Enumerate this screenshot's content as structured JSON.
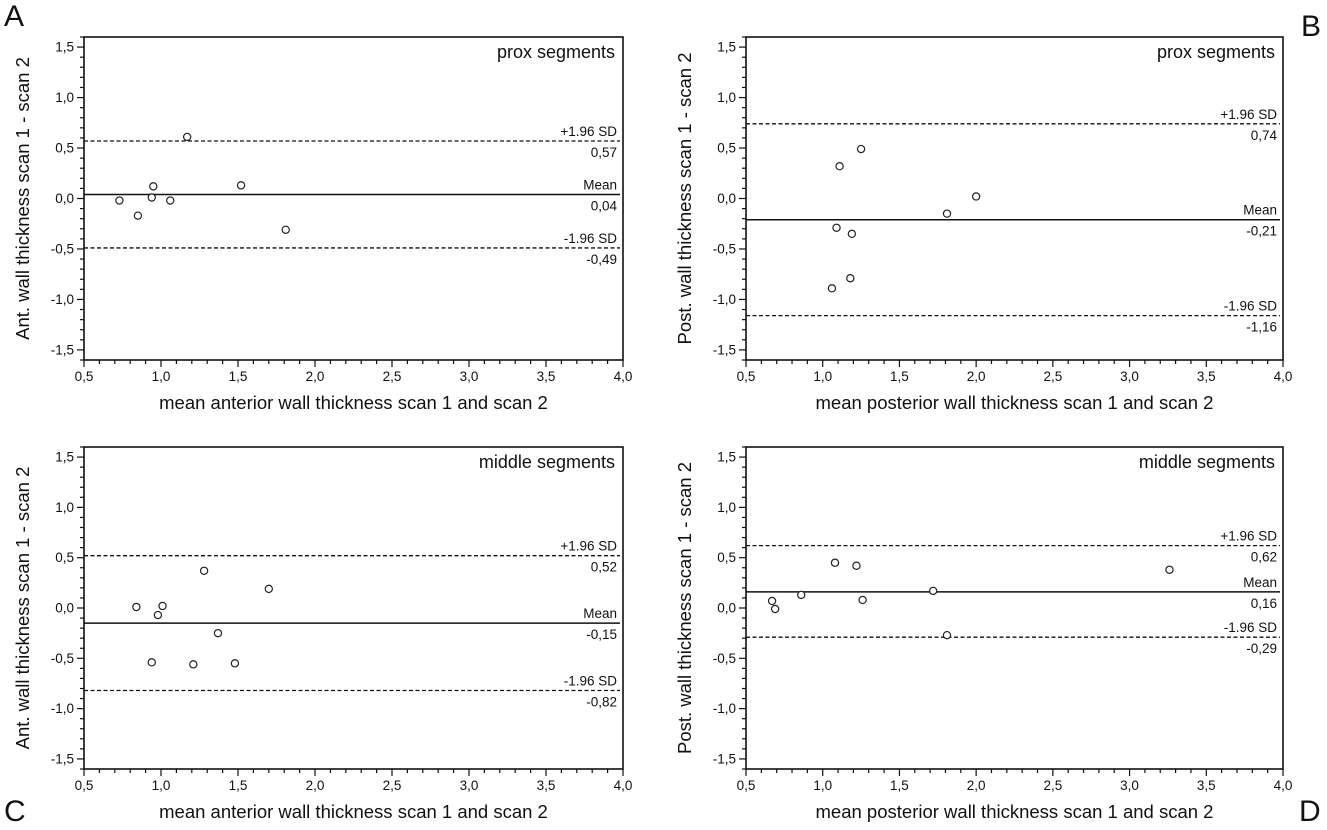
{
  "panel_letters": [
    "A",
    "B",
    "C",
    "D"
  ],
  "chart_data": [
    {
      "panel": "A",
      "type": "scatter",
      "title": "prox segments",
      "xlabel": "mean anterior wall thickness scan 1 and scan 2",
      "ylabel": "Ant. wall thickness scan 1 - scan 2",
      "xlim": [
        0.5,
        4.0
      ],
      "ylim": [
        -1.6,
        1.6
      ],
      "xticks": [
        "0,5",
        "1,0",
        "1,5",
        "2,0",
        "2,5",
        "3,0",
        "3,5",
        "4,0"
      ],
      "xtick_values": [
        0.5,
        1.0,
        1.5,
        2.0,
        2.5,
        3.0,
        3.5,
        4.0
      ],
      "yticks": [
        "1,5",
        "1,0",
        "0,5",
        "0,0",
        "-0,5",
        "-1,0",
        "-1,5"
      ],
      "ytick_values": [
        1.5,
        1.0,
        0.5,
        0.0,
        -0.5,
        -1.0,
        -1.5
      ],
      "grid": false,
      "points": [
        {
          "x": 0.73,
          "y": -0.02
        },
        {
          "x": 0.85,
          "y": -0.17
        },
        {
          "x": 0.94,
          "y": 0.01
        },
        {
          "x": 0.95,
          "y": 0.12
        },
        {
          "x": 1.06,
          "y": -0.02
        },
        {
          "x": 1.17,
          "y": 0.61
        },
        {
          "x": 1.52,
          "y": 0.13
        },
        {
          "x": 1.81,
          "y": -0.31
        }
      ],
      "lines": [
        {
          "label": "+1.96 SD",
          "value_label": "0,57",
          "y": 0.57,
          "style": "dashed"
        },
        {
          "label": "Mean",
          "value_label": "0,04",
          "y": 0.04,
          "style": "solid"
        },
        {
          "label": "-1.96 SD",
          "value_label": "-0,49",
          "y": -0.49,
          "style": "dashed"
        }
      ]
    },
    {
      "panel": "B",
      "type": "scatter",
      "title": "prox segments",
      "xlabel": "mean posterior wall thickness scan 1 and scan 2",
      "ylabel": "Post. wall thickness scan 1 - scan 2",
      "xlim": [
        0.5,
        4.0
      ],
      "ylim": [
        -1.6,
        1.6
      ],
      "xticks": [
        "0,5",
        "1,0",
        "1,5",
        "2,0",
        "2,5",
        "3,0",
        "3,5",
        "4,0"
      ],
      "xtick_values": [
        0.5,
        1.0,
        1.5,
        2.0,
        2.5,
        3.0,
        3.5,
        4.0
      ],
      "yticks": [
        "1,5",
        "1,0",
        "0,5",
        "0,0",
        "-0,5",
        "-1,0",
        "-1,5"
      ],
      "ytick_values": [
        1.5,
        1.0,
        0.5,
        0.0,
        -0.5,
        -1.0,
        -1.5
      ],
      "grid": false,
      "points": [
        {
          "x": 1.06,
          "y": -0.89
        },
        {
          "x": 1.09,
          "y": -0.29
        },
        {
          "x": 1.11,
          "y": 0.32
        },
        {
          "x": 1.18,
          "y": -0.79
        },
        {
          "x": 1.19,
          "y": -0.35
        },
        {
          "x": 1.25,
          "y": 0.49
        },
        {
          "x": 1.81,
          "y": -0.15
        },
        {
          "x": 2.0,
          "y": 0.02
        }
      ],
      "lines": [
        {
          "label": "+1.96 SD",
          "value_label": "0,74",
          "y": 0.74,
          "style": "dashed"
        },
        {
          "label": "Mean",
          "value_label": "-0,21",
          "y": -0.21,
          "style": "solid"
        },
        {
          "label": "-1.96 SD",
          "value_label": "-1,16",
          "y": -1.16,
          "style": "dashed"
        }
      ]
    },
    {
      "panel": "C",
      "type": "scatter",
      "title": "middle segments",
      "xlabel": "mean anterior wall thickness scan 1 and scan 2",
      "ylabel": "Ant. wall thickness scan 1 - scan 2",
      "xlim": [
        0.5,
        4.0
      ],
      "ylim": [
        -1.6,
        1.6
      ],
      "xticks": [
        "0,5",
        "1,0",
        "1,5",
        "2,0",
        "2,5",
        "3,0",
        "3,5",
        "4,0"
      ],
      "xtick_values": [
        0.5,
        1.0,
        1.5,
        2.0,
        2.5,
        3.0,
        3.5,
        4.0
      ],
      "yticks": [
        "1,5",
        "1,0",
        "0,5",
        "0,0",
        "-0,5",
        "-1,0",
        "-1,5"
      ],
      "ytick_values": [
        1.5,
        1.0,
        0.5,
        0.0,
        -0.5,
        -1.0,
        -1.5
      ],
      "grid": false,
      "points": [
        {
          "x": 0.84,
          "y": 0.01
        },
        {
          "x": 0.94,
          "y": -0.54
        },
        {
          "x": 0.98,
          "y": -0.07
        },
        {
          "x": 1.01,
          "y": 0.02
        },
        {
          "x": 1.21,
          "y": -0.56
        },
        {
          "x": 1.28,
          "y": 0.37
        },
        {
          "x": 1.37,
          "y": -0.25
        },
        {
          "x": 1.48,
          "y": -0.55
        },
        {
          "x": 1.7,
          "y": 0.19
        }
      ],
      "lines": [
        {
          "label": "+1.96 SD",
          "value_label": "0,52",
          "y": 0.52,
          "style": "dashed"
        },
        {
          "label": "Mean",
          "value_label": "-0,15",
          "y": -0.15,
          "style": "solid"
        },
        {
          "label": "-1.96 SD",
          "value_label": "-0,82",
          "y": -0.82,
          "style": "dashed"
        }
      ]
    },
    {
      "panel": "D",
      "type": "scatter",
      "title": "middle segments",
      "xlabel": "mean posterior wall thickness scan 1 and scan 2",
      "ylabel": "Post. wall thickness scan 1 - scan 2",
      "xlim": [
        0.5,
        4.0
      ],
      "ylim": [
        -1.6,
        1.6
      ],
      "xticks": [
        "0,5",
        "1,0",
        "1,5",
        "2,0",
        "2,5",
        "3,0",
        "3,5",
        "4,0"
      ],
      "xtick_values": [
        0.5,
        1.0,
        1.5,
        2.0,
        2.5,
        3.0,
        3.5,
        4.0
      ],
      "yticks": [
        "1,5",
        "1,0",
        "0,5",
        "0,0",
        "-0,5",
        "-1,0",
        "-1,5"
      ],
      "ytick_values": [
        1.5,
        1.0,
        0.5,
        0.0,
        -0.5,
        -1.0,
        -1.5
      ],
      "grid": false,
      "points": [
        {
          "x": 0.67,
          "y": 0.07
        },
        {
          "x": 0.69,
          "y": -0.01
        },
        {
          "x": 0.86,
          "y": 0.13
        },
        {
          "x": 1.08,
          "y": 0.45
        },
        {
          "x": 1.22,
          "y": 0.42
        },
        {
          "x": 1.26,
          "y": 0.08
        },
        {
          "x": 1.72,
          "y": 0.17
        },
        {
          "x": 1.81,
          "y": -0.27
        },
        {
          "x": 3.26,
          "y": 0.38
        }
      ],
      "lines": [
        {
          "label": "+1.96 SD",
          "value_label": "0,62",
          "y": 0.62,
          "style": "dashed"
        },
        {
          "label": "Mean",
          "value_label": "0,16",
          "y": 0.16,
          "style": "solid"
        },
        {
          "label": "-1.96 SD",
          "value_label": "-0,29",
          "y": -0.29,
          "style": "dashed"
        }
      ]
    }
  ]
}
